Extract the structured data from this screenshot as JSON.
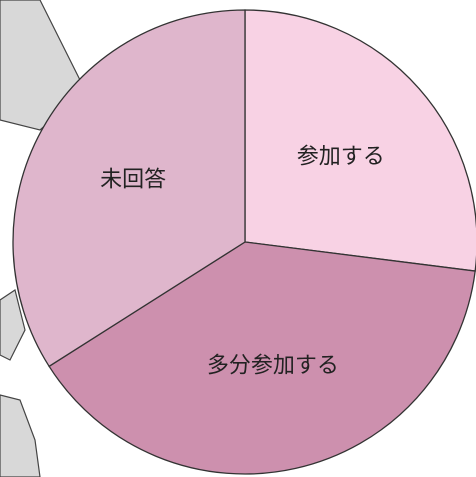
{
  "chart_data": {
    "type": "pie",
    "categories": [
      "参加する",
      "多分参加する",
      "未回答"
    ],
    "values": [
      27,
      39,
      34
    ],
    "colors": [
      "#f8d2e4",
      "#cd90ae",
      "#dfb6cc"
    ]
  }
}
